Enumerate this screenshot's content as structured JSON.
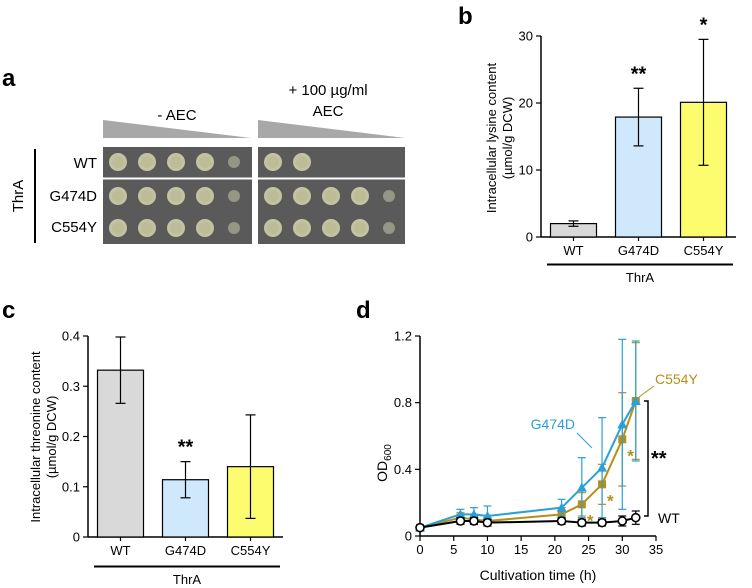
{
  "panel_a": {
    "letter": "a",
    "col1_label": "- AEC",
    "col2_label_line1": "+ 100 µg/ml",
    "col2_label_line2": "AEC",
    "group_label": "ThrA",
    "rows": [
      "WT",
      "G474D",
      "C554Y"
    ],
    "spots_no_aec": [
      {
        "row": 0,
        "density": [
          1,
          1,
          1,
          0.95,
          0.45
        ]
      },
      {
        "row": 1,
        "density": [
          1,
          1,
          1,
          0.95,
          0.4
        ]
      },
      {
        "row": 2,
        "density": [
          1,
          1,
          1,
          0.95,
          0.45
        ]
      }
    ],
    "spots_aec": [
      {
        "row": 0,
        "density": [
          1,
          0.85,
          0,
          0,
          0
        ]
      },
      {
        "row": 1,
        "density": [
          1,
          1,
          1,
          0.9,
          0.35
        ]
      },
      {
        "row": 2,
        "density": [
          1,
          1,
          1,
          0.85,
          0.4
        ]
      }
    ],
    "colors": {
      "plate": "#5a5a5a",
      "colony": "#c9c9a8",
      "wedge": "#a8a8a8"
    }
  },
  "chart_data": [
    {
      "panel": "b",
      "type": "bar",
      "title": "",
      "ylabel_line1": "Intracellular lysine content",
      "ylabel_line2": "(µmol/g DCW)",
      "xlabel": "ThrA",
      "categories": [
        "WT",
        "G474D",
        "C554Y"
      ],
      "values": [
        2.0,
        17.9,
        20.1
      ],
      "errors": [
        0.4,
        4.3,
        9.4
      ],
      "significance": [
        "",
        "**",
        "*"
      ],
      "colors": [
        "#d9d9d9",
        "#cfe8fb",
        "#fdfb6e"
      ],
      "ylim": [
        0,
        30
      ],
      "yticks": [
        "0",
        "10",
        "20",
        "30"
      ]
    },
    {
      "panel": "c",
      "type": "bar",
      "title": "",
      "ylabel_line1": "Intracellular threonine content",
      "ylabel_line2": "(µmol/g DCW)",
      "xlabel": "ThrA",
      "categories": [
        "WT",
        "G474D",
        "C554Y"
      ],
      "values": [
        0.332,
        0.114,
        0.14
      ],
      "errors": [
        0.066,
        0.036,
        0.103
      ],
      "significance": [
        "",
        "**",
        ""
      ],
      "colors": [
        "#d9d9d9",
        "#cfe8fb",
        "#fdfb6e"
      ],
      "ylim": [
        0,
        0.4
      ],
      "yticks": [
        "0",
        "0.1",
        "0.2",
        "0.3",
        "0.4"
      ]
    },
    {
      "panel": "d",
      "type": "line",
      "title": "",
      "ylabel": "OD",
      "ylabel_sub": "600",
      "xlabel": "Cultivation time (h)",
      "xlim": [
        0,
        35
      ],
      "ylim": [
        0,
        1.2
      ],
      "xticks": [
        "0",
        "5",
        "10",
        "15",
        "20",
        "25",
        "30",
        "35"
      ],
      "yticks": [
        "0",
        "0.4",
        "0.8",
        "1.2"
      ],
      "series": [
        {
          "name": "WT",
          "color": "#000000",
          "marker": "circle",
          "x": [
            0,
            6,
            8,
            10,
            21,
            24,
            27,
            30,
            32
          ],
          "y": [
            0.05,
            0.09,
            0.09,
            0.08,
            0.09,
            0.08,
            0.08,
            0.09,
            0.11
          ],
          "err": [
            0.01,
            0.02,
            0.02,
            0.02,
            0.02,
            0.02,
            0.02,
            0.03,
            0.04
          ]
        },
        {
          "name": "G474D",
          "color": "#2a9fd8",
          "marker": "triangle",
          "x": [
            0,
            6,
            8,
            10,
            21,
            24,
            27,
            30,
            32
          ],
          "y": [
            0.05,
            0.13,
            0.13,
            0.12,
            0.17,
            0.29,
            0.41,
            0.67,
            0.81
          ],
          "err": [
            0.01,
            0.03,
            0.04,
            0.06,
            0.05,
            0.18,
            0.3,
            0.51,
            0.36
          ]
        },
        {
          "name": "C554Y",
          "color": "#b58f19",
          "marker": "square",
          "x": [
            0,
            6,
            8,
            10,
            21,
            24,
            27,
            30,
            32
          ],
          "y": [
            0.05,
            0.11,
            0.1,
            0.09,
            0.13,
            0.19,
            0.31,
            0.58,
            0.81
          ],
          "err": [
            0.01,
            0.03,
            0.03,
            0.03,
            0.04,
            0.07,
            0.12,
            0.28,
            0.35
          ]
        }
      ],
      "series_stars": [
        "*",
        "*",
        "*"
      ],
      "group_significance": "**",
      "wt_label": "WT"
    }
  ]
}
